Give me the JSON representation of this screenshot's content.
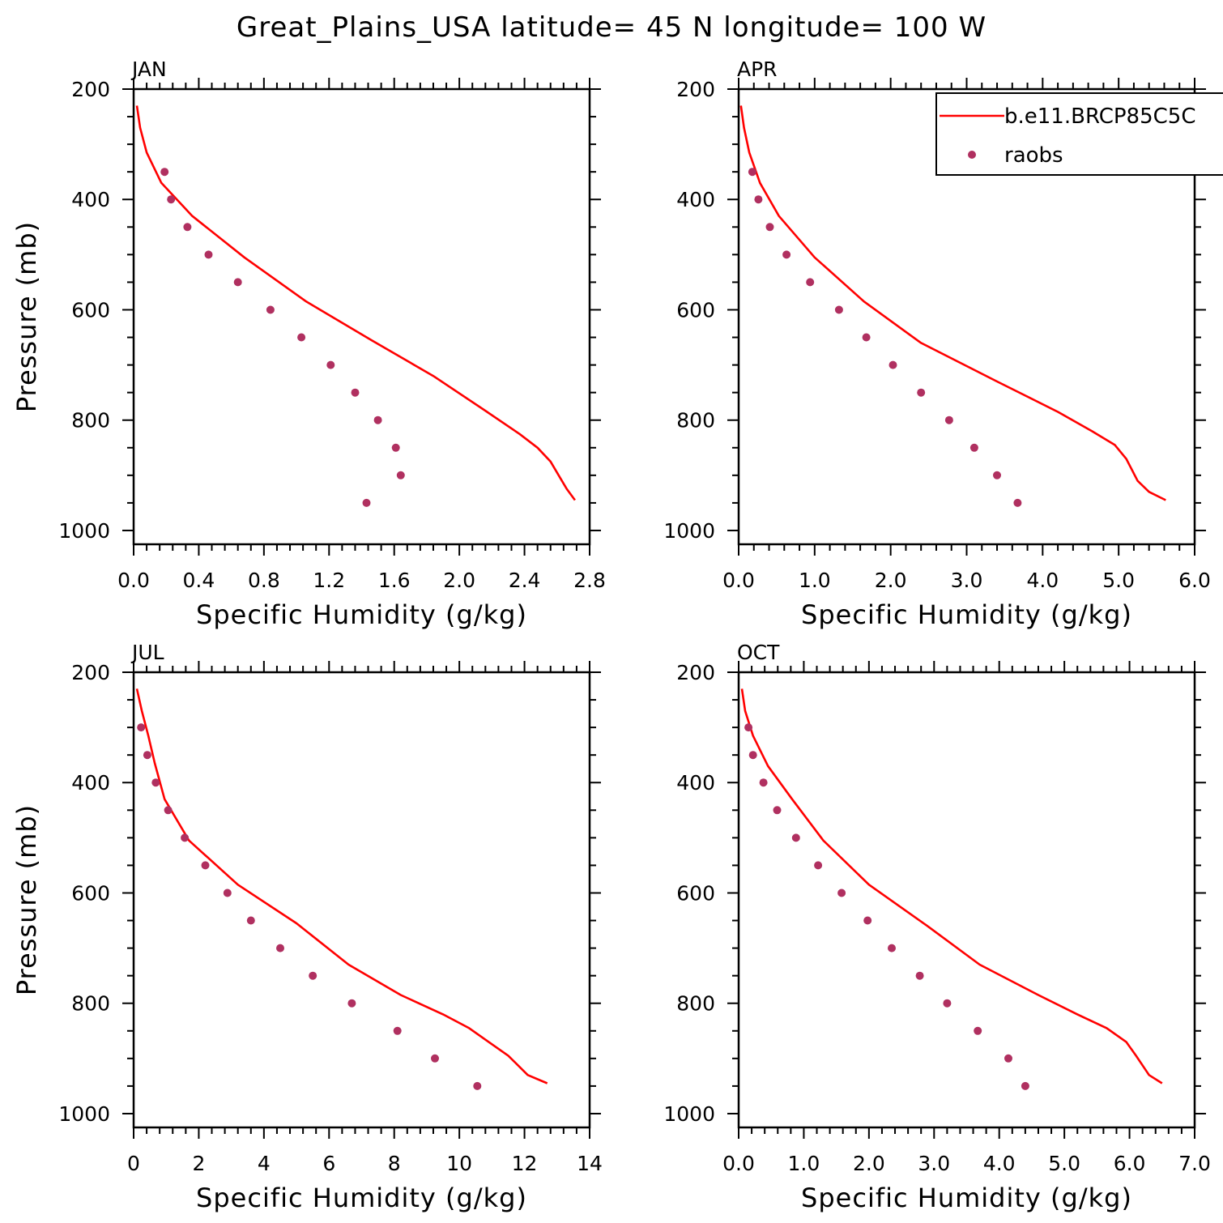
{
  "figure": {
    "title": "Great_Plains_USA  latitude= 45 N longitude= 100 W"
  },
  "colors": {
    "model_line": "#ff0000",
    "obs_marker": "#b03060",
    "frame": "#000000",
    "background": "#ffffff"
  },
  "legend": {
    "placement": "top-right of APR panel, clipped at figure edge",
    "entries": [
      {
        "label": "b.e11.BRCP85C5C",
        "style": "line",
        "color": "#ff0000"
      },
      {
        "label": "raobs",
        "style": "marker",
        "color": "#b03060"
      }
    ]
  },
  "chart_data": [
    {
      "type": "line",
      "panel": "JAN",
      "title": "JAN",
      "xlabel": "Specific Humidity (g/kg)",
      "ylabel": "Pressure (mb)",
      "xlim": [
        0,
        2.8
      ],
      "ylim": [
        1025,
        200
      ],
      "y_inverted": true,
      "xticks": [
        0,
        0.4,
        0.8,
        1.2,
        1.6,
        2.0,
        2.4,
        2.8
      ],
      "xtick_labels": [
        "0.0",
        "0.4",
        "0.8",
        "1.2",
        "1.6",
        "2.0",
        "2.4",
        "2.8"
      ],
      "yticks": [
        200,
        400,
        600,
        800,
        1000
      ],
      "ytick_labels": [
        "200",
        "400",
        "600",
        "800",
        "1000"
      ],
      "series": [
        {
          "name": "b.e11.BRCP85C5C",
          "style": "line",
          "x": [
            0.02,
            0.04,
            0.08,
            0.17,
            0.36,
            0.68,
            1.06,
            1.46,
            1.84,
            2.17,
            2.37,
            2.48,
            2.56,
            2.62,
            2.66,
            2.71
          ],
          "y": [
            230,
            270,
            315,
            370,
            430,
            505,
            585,
            655,
            720,
            785,
            825,
            850,
            875,
            905,
            925,
            945
          ]
        },
        {
          "name": "raobs",
          "style": "marker",
          "x": [
            0.19,
            0.23,
            0.33,
            0.46,
            0.64,
            0.84,
            1.03,
            1.21,
            1.36,
            1.5,
            1.61,
            1.64,
            1.43
          ],
          "y": [
            350,
            400,
            450,
            500,
            550,
            600,
            650,
            700,
            750,
            800,
            850,
            900,
            950
          ]
        }
      ]
    },
    {
      "type": "line",
      "panel": "APR",
      "title": "APR",
      "xlabel": "Specific Humidity (g/kg)",
      "ylabel": "",
      "xlim": [
        0,
        6.0
      ],
      "ylim": [
        1025,
        200
      ],
      "y_inverted": true,
      "xticks": [
        0,
        1,
        2,
        3,
        4,
        5,
        6
      ],
      "xtick_labels": [
        "0.0",
        "1.0",
        "2.0",
        "3.0",
        "4.0",
        "5.0",
        "6.0"
      ],
      "yticks": [
        200,
        400,
        600,
        800,
        1000
      ],
      "ytick_labels": [
        "200",
        "400",
        "600",
        "800",
        "1000"
      ],
      "series": [
        {
          "name": "b.e11.BRCP85C5C",
          "style": "line",
          "x": [
            0.03,
            0.07,
            0.14,
            0.28,
            0.53,
            1.0,
            1.65,
            2.4,
            3.4,
            4.2,
            4.65,
            4.95,
            5.1,
            5.25,
            5.4,
            5.62
          ],
          "y": [
            230,
            270,
            315,
            370,
            430,
            505,
            585,
            660,
            730,
            785,
            820,
            845,
            870,
            910,
            930,
            945
          ]
        },
        {
          "name": "raobs",
          "style": "marker",
          "x": [
            0.18,
            0.26,
            0.41,
            0.63,
            0.94,
            1.32,
            1.68,
            2.03,
            2.4,
            2.77,
            3.1,
            3.4,
            3.67
          ],
          "y": [
            350,
            400,
            450,
            500,
            550,
            600,
            650,
            700,
            750,
            800,
            850,
            900,
            950
          ]
        }
      ]
    },
    {
      "type": "line",
      "panel": "JUL",
      "title": "JUL",
      "xlabel": "Specific Humidity (g/kg)",
      "ylabel": "Pressure (mb)",
      "xlim": [
        0,
        14
      ],
      "ylim": [
        1025,
        200
      ],
      "y_inverted": true,
      "xticks": [
        0,
        2,
        4,
        6,
        8,
        10,
        12,
        14
      ],
      "xtick_labels": [
        "0",
        "2",
        "4",
        "6",
        "8",
        "10",
        "12",
        "14"
      ],
      "yticks": [
        200,
        400,
        600,
        800,
        1000
      ],
      "ytick_labels": [
        "200",
        "400",
        "600",
        "800",
        "1000"
      ],
      "series": [
        {
          "name": "b.e11.BRCP85C5C",
          "style": "line",
          "x": [
            0.1,
            0.25,
            0.45,
            0.65,
            0.95,
            1.7,
            3.2,
            5.0,
            6.6,
            8.2,
            9.5,
            10.3,
            10.9,
            11.5,
            12.1,
            12.7
          ],
          "y": [
            230,
            270,
            315,
            365,
            430,
            505,
            585,
            655,
            730,
            785,
            820,
            845,
            870,
            895,
            930,
            945
          ]
        },
        {
          "name": "raobs",
          "style": "marker",
          "x": [
            0.23,
            0.42,
            0.68,
            1.06,
            1.57,
            2.2,
            2.88,
            3.6,
            4.5,
            5.5,
            6.7,
            8.1,
            9.25,
            10.55
          ],
          "y": [
            300,
            350,
            400,
            450,
            500,
            550,
            600,
            650,
            700,
            750,
            800,
            850,
            900,
            950
          ]
        }
      ]
    },
    {
      "type": "line",
      "panel": "OCT",
      "title": "OCT",
      "xlabel": "Specific Humidity (g/kg)",
      "ylabel": "",
      "xlim": [
        0,
        7.0
      ],
      "ylim": [
        1025,
        200
      ],
      "y_inverted": true,
      "xticks": [
        0,
        1,
        2,
        3,
        4,
        5,
        6,
        7
      ],
      "xtick_labels": [
        "0.0",
        "1.0",
        "2.0",
        "3.0",
        "4.0",
        "5.0",
        "6.0",
        "7.0"
      ],
      "yticks": [
        200,
        400,
        600,
        800,
        1000
      ],
      "ytick_labels": [
        "200",
        "400",
        "600",
        "800",
        "1000"
      ],
      "series": [
        {
          "name": "b.e11.BRCP85C5C",
          "style": "line",
          "x": [
            0.05,
            0.1,
            0.22,
            0.45,
            0.82,
            1.3,
            2.0,
            2.9,
            3.7,
            4.6,
            5.2,
            5.65,
            5.95,
            6.1,
            6.3,
            6.5
          ],
          "y": [
            230,
            270,
            315,
            370,
            430,
            505,
            585,
            660,
            730,
            785,
            820,
            845,
            870,
            895,
            930,
            945
          ]
        },
        {
          "name": "raobs",
          "style": "marker",
          "x": [
            0.15,
            0.22,
            0.38,
            0.59,
            0.88,
            1.22,
            1.58,
            1.98,
            2.35,
            2.78,
            3.2,
            3.67,
            4.14,
            4.4
          ],
          "y": [
            300,
            350,
            400,
            450,
            500,
            550,
            600,
            650,
            700,
            750,
            800,
            850,
            900,
            950
          ]
        }
      ]
    }
  ]
}
